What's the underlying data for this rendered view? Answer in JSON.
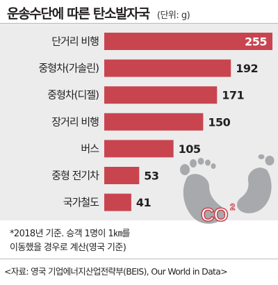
{
  "title": "운송수단에 따른 탄소발자국",
  "unit": "(단위: g)",
  "chart_data": {
    "type": "bar",
    "orientation": "horizontal",
    "title": "운송수단에 따른 탄소발자국",
    "unit": "g",
    "categories": [
      "단거리 비행",
      "중형차(가솔린)",
      "중형차(디젤)",
      "장거리 비행",
      "버스",
      "중형 전기차",
      "국가철도"
    ],
    "values": [
      255,
      192,
      171,
      150,
      105,
      53,
      41
    ],
    "xlim": [
      0,
      255
    ],
    "grid": false,
    "bar_color": "#c8454f"
  },
  "illustration": {
    "icon": "footprints-icon",
    "co2_text": "CO",
    "co2_sub": "2",
    "colors": {
      "feet": "#a7a9ac",
      "co2": "#c8454f"
    }
  },
  "note": {
    "line1": "*2018년 기준. 승객 1명이 1㎞를",
    "line2": "이동했을 경우로 계산(영국 기준)"
  },
  "source": "<자료: 영국 기업에너지산업전략부(BEIS), Our World in Data>"
}
